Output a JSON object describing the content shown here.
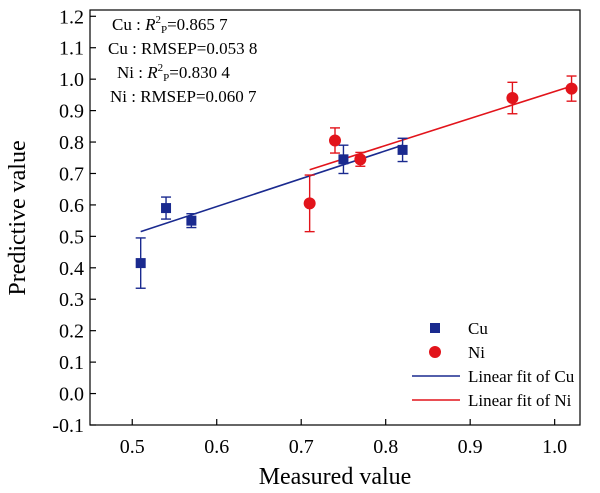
{
  "chart_data": {
    "type": "scatter",
    "xlabel": "Measured value",
    "ylabel": "Predictive value",
    "xlim": [
      0.45,
      1.03
    ],
    "ylim": [
      -0.1,
      1.22
    ],
    "xticks": [
      "0.5",
      "0.6",
      "0.7",
      "0.8",
      "0.9",
      "1.0"
    ],
    "yticks": [
      "-0.1",
      "0.0",
      "0.1",
      "0.2",
      "0.3",
      "0.4",
      "0.5",
      "0.6",
      "0.7",
      "0.8",
      "0.9",
      "1.0",
      "1.1",
      "1.2"
    ],
    "grid": false,
    "legend_position": "bottom-right",
    "annotations": [
      {
        "prefix": "Cu : ",
        "italic": "R",
        "sup": "2",
        "sub": "P",
        "suffix": "=0.865 7"
      },
      {
        "prefix": "Cu : RMSEP=0.053 8",
        "italic": "",
        "sup": "",
        "sub": "",
        "suffix": ""
      },
      {
        "prefix": "Ni : ",
        "italic": "R",
        "sup": "2",
        "sub": "P",
        "suffix": "=0.830 4"
      },
      {
        "prefix": "Ni : RMSEP=0.060 7",
        "italic": "",
        "sup": "",
        "sub": "",
        "suffix": ""
      }
    ],
    "series": [
      {
        "name": "Cu",
        "marker": "square",
        "color": "#1a2a8f",
        "points": [
          {
            "x": 0.51,
            "y": 0.415,
            "err": 0.08
          },
          {
            "x": 0.54,
            "y": 0.59,
            "err": 0.035
          },
          {
            "x": 0.57,
            "y": 0.55,
            "err": 0.022
          },
          {
            "x": 0.75,
            "y": 0.745,
            "err": 0.045
          },
          {
            "x": 0.82,
            "y": 0.775,
            "err": 0.037
          }
        ]
      },
      {
        "name": "Ni",
        "marker": "circle",
        "color": "#e2141b",
        "points": [
          {
            "x": 0.71,
            "y": 0.605,
            "err": 0.09
          },
          {
            "x": 0.74,
            "y": 0.805,
            "err": 0.04
          },
          {
            "x": 0.77,
            "y": 0.745,
            "err": 0.022
          },
          {
            "x": 0.95,
            "y": 0.94,
            "err": 0.05
          },
          {
            "x": 1.02,
            "y": 0.97,
            "err": 0.04
          }
        ]
      }
    ],
    "fits": [
      {
        "name": "Linear fit of Cu",
        "color": "#1a2a8f",
        "x": [
          0.51,
          0.82
        ],
        "y": [
          0.515,
          0.79
        ]
      },
      {
        "name": "Linear fit of Ni",
        "color": "#e2141b",
        "x": [
          0.71,
          1.02
        ],
        "y": [
          0.712,
          0.978
        ]
      }
    ]
  }
}
